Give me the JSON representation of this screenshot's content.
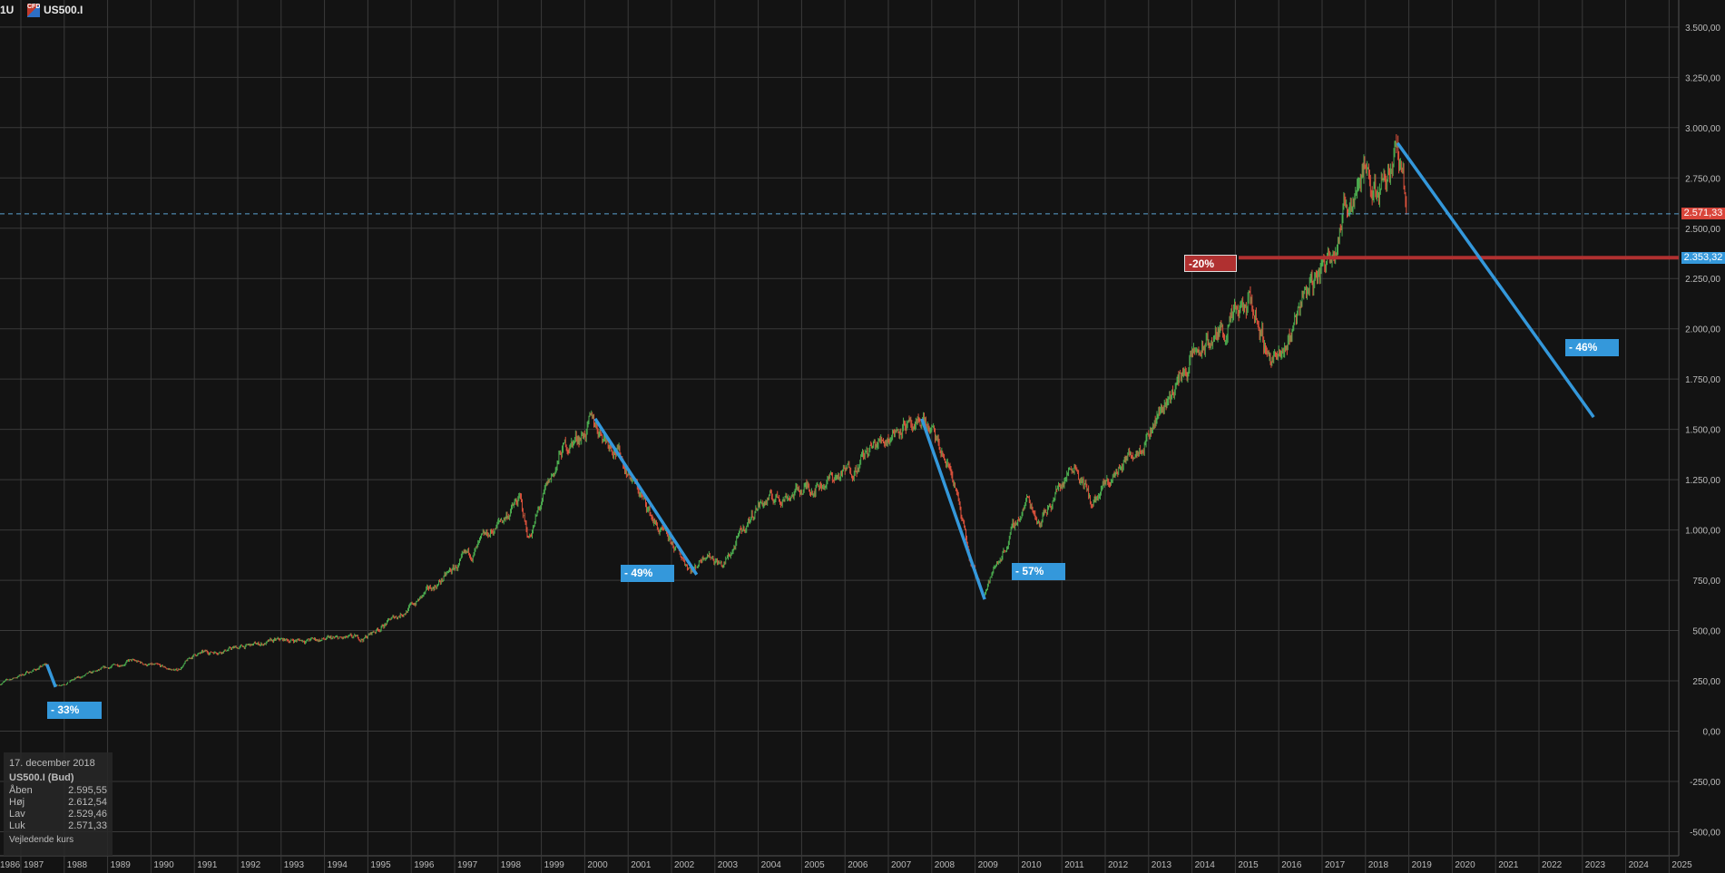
{
  "header": {
    "timeframe": "1U",
    "instrument_icon": "cfd-icon",
    "instrument_icon_text": "CFD",
    "instrument": "US500.I"
  },
  "colors": {
    "up": "#4caf50",
    "down": "#e0533d",
    "trendline": "#3498db",
    "support": "#b03030",
    "grid": "#3a3a3a",
    "current_price_line": "#5aa0d0"
  },
  "info_panel": {
    "date": "17. december 2018",
    "title": "US500.I (Bud)",
    "rows": [
      {
        "label": "Åben",
        "value": "2.595,55"
      },
      {
        "label": "Høj",
        "value": "2.612,54"
      },
      {
        "label": "Lav",
        "value": "2.529,46"
      },
      {
        "label": "Luk",
        "value": "2.571,33"
      }
    ],
    "footer": "Vejledende kurs"
  },
  "chart_data": {
    "type": "candlestick",
    "title": "",
    "xlabel": "",
    "ylabel": "",
    "xlim": [
      1986.5,
      2025.2
    ],
    "ylim": [
      -600,
      3620
    ],
    "grid": true,
    "x_ticks": [
      "1986",
      "1987",
      "1988",
      "1989",
      "1990",
      "1991",
      "1992",
      "1993",
      "1994",
      "1995",
      "1996",
      "1997",
      "1998",
      "1999",
      "2000",
      "2001",
      "2002",
      "2003",
      "2004",
      "2005",
      "2006",
      "2007",
      "2008",
      "2009",
      "2010",
      "2011",
      "2012",
      "2013",
      "2014",
      "2015",
      "2016",
      "2017",
      "2018",
      "2019",
      "2020",
      "2021",
      "2022",
      "2023",
      "2024",
      "2025"
    ],
    "y_ticks": [
      "3.500,00",
      "3.250,00",
      "3.000,00",
      "2.750,00",
      "2.500,00",
      "2.250,00",
      "2.000,00",
      "1.750,00",
      "1.500,00",
      "1.250,00",
      "1.000,00",
      "750,00",
      "500,00",
      "250,00",
      "0,00",
      "-250,00",
      "-500,00"
    ],
    "y_tick_values": [
      3500,
      3250,
      3000,
      2750,
      2500,
      2250,
      2000,
      1750,
      1500,
      1250,
      1000,
      750,
      500,
      250,
      0,
      -250,
      -500
    ],
    "price_path": [
      [
        1986.5,
        235
      ],
      [
        1987.6,
        330
      ],
      [
        1987.8,
        225
      ],
      [
        1989.5,
        350
      ],
      [
        1990.6,
        300
      ],
      [
        1991,
        380
      ],
      [
        1993,
        450
      ],
      [
        1994.9,
        460
      ],
      [
        1996,
        620
      ],
      [
        1997.5,
        900
      ],
      [
        1998.5,
        1150
      ],
      [
        1998.7,
        960
      ],
      [
        1999.5,
        1400
      ],
      [
        2000.2,
        1530
      ],
      [
        2000.7,
        1420
      ],
      [
        2001.7,
        1000
      ],
      [
        2002.5,
        800
      ],
      [
        2002.8,
        900
      ],
      [
        2003.2,
        820
      ],
      [
        2004,
        1130
      ],
      [
        2005,
        1200
      ],
      [
        2006,
        1280
      ],
      [
        2007.4,
        1550
      ],
      [
        2007.6,
        1450
      ],
      [
        2007.8,
        1560
      ],
      [
        2008.5,
        1260
      ],
      [
        2008.9,
        820
      ],
      [
        2009.2,
        690
      ],
      [
        2010.2,
        1150
      ],
      [
        2010.5,
        1050
      ],
      [
        2011.3,
        1350
      ],
      [
        2011.7,
        1120
      ],
      [
        2013,
        1500
      ],
      [
        2014,
        1850
      ],
      [
        2015.4,
        2120
      ],
      [
        2015.7,
        1900
      ],
      [
        2016.1,
        1830
      ],
      [
        2016.5,
        2150
      ],
      [
        2017,
        2300
      ],
      [
        2018.0,
        2850
      ],
      [
        2018.1,
        2620
      ],
      [
        2018.7,
        2920
      ],
      [
        2018.96,
        2571
      ]
    ],
    "current_price": {
      "value": 2571.33,
      "label": "2.571,33"
    },
    "support_level": {
      "value": 2353.32,
      "label": "2.353,32",
      "annotation": "-20%"
    },
    "trendlines": [
      {
        "from": [
          1987.6,
          331
        ],
        "to": [
          1987.8,
          219
        ],
        "label": "- 33%"
      },
      {
        "from": [
          2000.24,
          1553
        ],
        "to": [
          2002.58,
          778
        ],
        "label": "- 49%"
      },
      {
        "from": [
          2007.77,
          1553
        ],
        "to": [
          2009.22,
          655
        ],
        "label": "- 57%"
      },
      {
        "from": [
          2018.74,
          2923
        ],
        "to": [
          2023.26,
          1561
        ],
        "label": "- 46%"
      }
    ]
  }
}
